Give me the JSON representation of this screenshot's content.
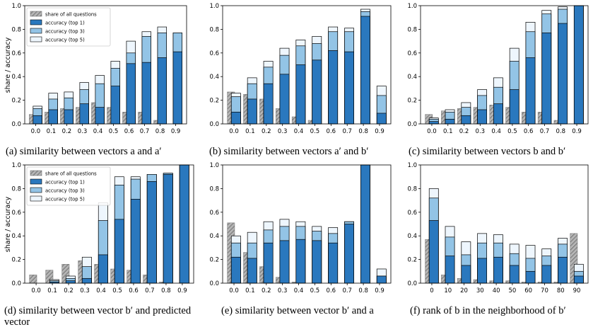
{
  "figure": {
    "ylabel": "share / accuracy",
    "legend": {
      "share": "share of all questions",
      "top1": "accuracy (top 1)",
      "top3": "accuracy (top 3)",
      "top5": "accuracy (top 5)"
    },
    "colors": {
      "share": "#a8a8a8",
      "top1": "#2a78be",
      "top3": "#93c4e6",
      "top5": "#eef6fd"
    },
    "captions": [
      "(a) similarity between vectors a and a′",
      "(b) similarity between vectors a′ and b′",
      "(c) similarity between vectors b and b′",
      "(d) similarity between vector b′ and predicted vector",
      "(e) similarity between vector b′ and a",
      "(f) rank of b in the neighborhood of b′"
    ]
  },
  "chart_data": [
    {
      "type": "bar",
      "title": "",
      "xlabel": "",
      "ylabel": "share / accuracy",
      "ylim": [
        0,
        1
      ],
      "legend_position": "top-left",
      "categories": [
        "0.0",
        "0.1",
        "0.2",
        "0.3",
        "0.4",
        "0.5",
        "0.6",
        "0.7",
        "0.8",
        "0.9"
      ],
      "series": [
        {
          "name": "share of all questions",
          "values": [
            0.08,
            0.1,
            0.13,
            0.14,
            0.18,
            0.14,
            0.1,
            0.1,
            0.03,
            0.0
          ]
        },
        {
          "name": "accuracy (top 1)",
          "values": [
            0.07,
            0.12,
            0.12,
            0.17,
            0.14,
            0.32,
            0.51,
            0.52,
            0.56,
            0.61
          ]
        },
        {
          "name": "accuracy (top 3)",
          "values": [
            0.13,
            0.21,
            0.22,
            0.29,
            0.34,
            0.47,
            0.6,
            0.74,
            0.77,
            0.77
          ]
        },
        {
          "name": "accuracy (top 5)",
          "values": [
            0.15,
            0.26,
            0.27,
            0.35,
            0.41,
            0.53,
            0.7,
            0.78,
            0.82,
            0.77
          ]
        }
      ]
    },
    {
      "type": "bar",
      "title": "",
      "xlabel": "",
      "ylabel": "",
      "ylim": [
        0,
        1
      ],
      "categories": [
        "0.0",
        "0.1",
        "0.2",
        "0.3",
        "0.4",
        "0.5",
        "0.6",
        "0.7",
        "0.8",
        "0.9"
      ],
      "series": [
        {
          "name": "share of all questions",
          "values": [
            0.27,
            0.25,
            0.21,
            0.13,
            0.06,
            0.03,
            0.0,
            0.0,
            0.0,
            0.0
          ]
        },
        {
          "name": "accuracy (top 1)",
          "values": [
            0.1,
            0.21,
            0.34,
            0.42,
            0.5,
            0.54,
            0.62,
            0.61,
            0.91,
            0.09
          ]
        },
        {
          "name": "accuracy (top 3)",
          "values": [
            0.23,
            0.34,
            0.48,
            0.58,
            0.66,
            0.68,
            0.78,
            0.78,
            0.95,
            0.24
          ]
        },
        {
          "name": "accuracy (top 5)",
          "values": [
            0.26,
            0.39,
            0.53,
            0.64,
            0.71,
            0.74,
            0.82,
            0.81,
            0.97,
            0.32
          ]
        }
      ]
    },
    {
      "type": "bar",
      "title": "",
      "xlabel": "",
      "ylabel": "",
      "ylim": [
        0,
        1
      ],
      "categories": [
        "0.0",
        "0.1",
        "0.2",
        "0.3",
        "0.4",
        "0.5",
        "0.6",
        "0.7",
        "0.8",
        "0.9"
      ],
      "series": [
        {
          "name": "share of all questions",
          "values": [
            0.08,
            0.11,
            0.13,
            0.14,
            0.16,
            0.14,
            0.1,
            0.1,
            0.03,
            0.0
          ]
        },
        {
          "name": "accuracy (top 1)",
          "values": [
            0.02,
            0.04,
            0.07,
            0.12,
            0.17,
            0.29,
            0.56,
            0.77,
            0.85,
            1.0
          ]
        },
        {
          "name": "accuracy (top 3)",
          "values": [
            0.04,
            0.1,
            0.14,
            0.24,
            0.31,
            0.53,
            0.78,
            0.93,
            0.97,
            1.0
          ]
        },
        {
          "name": "accuracy (top 5)",
          "values": [
            0.05,
            0.12,
            0.18,
            0.29,
            0.39,
            0.64,
            0.86,
            0.96,
            0.99,
            1.0
          ]
        }
      ]
    },
    {
      "type": "bar",
      "title": "",
      "xlabel": "",
      "ylabel": "share / accuracy",
      "ylim": [
        0,
        1
      ],
      "legend_position": "top-left",
      "categories": [
        "0.0",
        "0.1",
        "0.2",
        "0.3",
        "0.4",
        "0.5",
        "0.6",
        "0.7",
        "0.8",
        "0.9"
      ],
      "series": [
        {
          "name": "share of all questions",
          "values": [
            0.07,
            0.11,
            0.16,
            0.19,
            0.16,
            0.12,
            0.11,
            0.07,
            0.01,
            0.0
          ]
        },
        {
          "name": "accuracy (top 1)",
          "values": [
            0.0,
            0.01,
            0.02,
            0.04,
            0.24,
            0.54,
            0.71,
            0.86,
            0.92,
            1.0
          ]
        },
        {
          "name": "accuracy (top 3)",
          "values": [
            0.0,
            0.02,
            0.04,
            0.14,
            0.53,
            0.83,
            0.88,
            0.92,
            0.93,
            1.0
          ]
        },
        {
          "name": "accuracy (top 5)",
          "values": [
            0.0,
            0.03,
            0.06,
            0.22,
            0.68,
            0.9,
            0.9,
            0.92,
            0.93,
            1.0
          ]
        }
      ]
    },
    {
      "type": "bar",
      "title": "",
      "xlabel": "",
      "ylabel": "",
      "ylim": [
        0,
        1
      ],
      "categories": [
        "0.0",
        "0.1",
        "0.2",
        "0.3",
        "0.4",
        "0.5",
        "0.6",
        "0.7",
        "0.8",
        "0.9"
      ],
      "series": [
        {
          "name": "share of all questions",
          "values": [
            0.51,
            0.26,
            0.14,
            0.05,
            0.01,
            0.0,
            0.0,
            0.0,
            0.0,
            0.0
          ]
        },
        {
          "name": "accuracy (top 1)",
          "values": [
            0.22,
            0.21,
            0.34,
            0.36,
            0.37,
            0.36,
            0.34,
            0.5,
            1.0,
            0.06
          ]
        },
        {
          "name": "accuracy (top 3)",
          "values": [
            0.34,
            0.34,
            0.45,
            0.48,
            0.48,
            0.44,
            0.42,
            0.52,
            1.0,
            0.06
          ]
        },
        {
          "name": "accuracy (top 5)",
          "values": [
            0.4,
            0.43,
            0.52,
            0.54,
            0.52,
            0.48,
            0.47,
            0.52,
            1.0,
            0.12
          ]
        }
      ]
    },
    {
      "type": "bar",
      "title": "",
      "xlabel": "",
      "ylabel": "",
      "ylim": [
        0,
        1
      ],
      "categories": [
        "0",
        "10",
        "20",
        "30",
        "40",
        "50",
        "60",
        "70",
        "80",
        "90"
      ],
      "series": [
        {
          "name": "share of all questions",
          "values": [
            0.37,
            0.07,
            0.04,
            0.03,
            0.02,
            0.02,
            0.01,
            0.01,
            0.01,
            0.42
          ]
        },
        {
          "name": "accuracy (top 1)",
          "values": [
            0.53,
            0.23,
            0.15,
            0.21,
            0.22,
            0.15,
            0.1,
            0.15,
            0.22,
            0.06
          ]
        },
        {
          "name": "accuracy (top 3)",
          "values": [
            0.72,
            0.39,
            0.24,
            0.34,
            0.34,
            0.25,
            0.21,
            0.23,
            0.33,
            0.1
          ]
        },
        {
          "name": "accuracy (top 5)",
          "values": [
            0.8,
            0.48,
            0.35,
            0.42,
            0.41,
            0.33,
            0.32,
            0.29,
            0.38,
            0.16
          ]
        }
      ]
    }
  ]
}
